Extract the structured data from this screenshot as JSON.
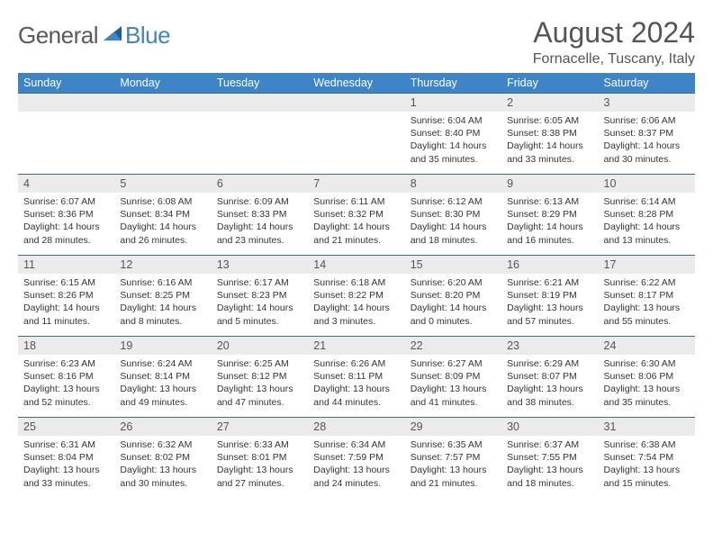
{
  "brand": {
    "part1": "General",
    "part2": "Blue"
  },
  "title": "August 2024",
  "subtitle": "Fornacelle, Tuscany, Italy",
  "colors": {
    "header_bg": "#3d85c6",
    "header_fg": "#ffffff",
    "daynum_bg": "#ebebeb",
    "rule": "#426a8c",
    "text": "#333333",
    "title": "#555555"
  },
  "dayNames": [
    "Sunday",
    "Monday",
    "Tuesday",
    "Wednesday",
    "Thursday",
    "Friday",
    "Saturday"
  ],
  "weeks": [
    [
      {
        "n": "",
        "sr": "",
        "ss": "",
        "dl": ""
      },
      {
        "n": "",
        "sr": "",
        "ss": "",
        "dl": ""
      },
      {
        "n": "",
        "sr": "",
        "ss": "",
        "dl": ""
      },
      {
        "n": "",
        "sr": "",
        "ss": "",
        "dl": ""
      },
      {
        "n": "1",
        "sr": "Sunrise: 6:04 AM",
        "ss": "Sunset: 8:40 PM",
        "dl": "Daylight: 14 hours and 35 minutes."
      },
      {
        "n": "2",
        "sr": "Sunrise: 6:05 AM",
        "ss": "Sunset: 8:38 PM",
        "dl": "Daylight: 14 hours and 33 minutes."
      },
      {
        "n": "3",
        "sr": "Sunrise: 6:06 AM",
        "ss": "Sunset: 8:37 PM",
        "dl": "Daylight: 14 hours and 30 minutes."
      }
    ],
    [
      {
        "n": "4",
        "sr": "Sunrise: 6:07 AM",
        "ss": "Sunset: 8:36 PM",
        "dl": "Daylight: 14 hours and 28 minutes."
      },
      {
        "n": "5",
        "sr": "Sunrise: 6:08 AM",
        "ss": "Sunset: 8:34 PM",
        "dl": "Daylight: 14 hours and 26 minutes."
      },
      {
        "n": "6",
        "sr": "Sunrise: 6:09 AM",
        "ss": "Sunset: 8:33 PM",
        "dl": "Daylight: 14 hours and 23 minutes."
      },
      {
        "n": "7",
        "sr": "Sunrise: 6:11 AM",
        "ss": "Sunset: 8:32 PM",
        "dl": "Daylight: 14 hours and 21 minutes."
      },
      {
        "n": "8",
        "sr": "Sunrise: 6:12 AM",
        "ss": "Sunset: 8:30 PM",
        "dl": "Daylight: 14 hours and 18 minutes."
      },
      {
        "n": "9",
        "sr": "Sunrise: 6:13 AM",
        "ss": "Sunset: 8:29 PM",
        "dl": "Daylight: 14 hours and 16 minutes."
      },
      {
        "n": "10",
        "sr": "Sunrise: 6:14 AM",
        "ss": "Sunset: 8:28 PM",
        "dl": "Daylight: 14 hours and 13 minutes."
      }
    ],
    [
      {
        "n": "11",
        "sr": "Sunrise: 6:15 AM",
        "ss": "Sunset: 8:26 PM",
        "dl": "Daylight: 14 hours and 11 minutes."
      },
      {
        "n": "12",
        "sr": "Sunrise: 6:16 AM",
        "ss": "Sunset: 8:25 PM",
        "dl": "Daylight: 14 hours and 8 minutes."
      },
      {
        "n": "13",
        "sr": "Sunrise: 6:17 AM",
        "ss": "Sunset: 8:23 PM",
        "dl": "Daylight: 14 hours and 5 minutes."
      },
      {
        "n": "14",
        "sr": "Sunrise: 6:18 AM",
        "ss": "Sunset: 8:22 PM",
        "dl": "Daylight: 14 hours and 3 minutes."
      },
      {
        "n": "15",
        "sr": "Sunrise: 6:20 AM",
        "ss": "Sunset: 8:20 PM",
        "dl": "Daylight: 14 hours and 0 minutes."
      },
      {
        "n": "16",
        "sr": "Sunrise: 6:21 AM",
        "ss": "Sunset: 8:19 PM",
        "dl": "Daylight: 13 hours and 57 minutes."
      },
      {
        "n": "17",
        "sr": "Sunrise: 6:22 AM",
        "ss": "Sunset: 8:17 PM",
        "dl": "Daylight: 13 hours and 55 minutes."
      }
    ],
    [
      {
        "n": "18",
        "sr": "Sunrise: 6:23 AM",
        "ss": "Sunset: 8:16 PM",
        "dl": "Daylight: 13 hours and 52 minutes."
      },
      {
        "n": "19",
        "sr": "Sunrise: 6:24 AM",
        "ss": "Sunset: 8:14 PM",
        "dl": "Daylight: 13 hours and 49 minutes."
      },
      {
        "n": "20",
        "sr": "Sunrise: 6:25 AM",
        "ss": "Sunset: 8:12 PM",
        "dl": "Daylight: 13 hours and 47 minutes."
      },
      {
        "n": "21",
        "sr": "Sunrise: 6:26 AM",
        "ss": "Sunset: 8:11 PM",
        "dl": "Daylight: 13 hours and 44 minutes."
      },
      {
        "n": "22",
        "sr": "Sunrise: 6:27 AM",
        "ss": "Sunset: 8:09 PM",
        "dl": "Daylight: 13 hours and 41 minutes."
      },
      {
        "n": "23",
        "sr": "Sunrise: 6:29 AM",
        "ss": "Sunset: 8:07 PM",
        "dl": "Daylight: 13 hours and 38 minutes."
      },
      {
        "n": "24",
        "sr": "Sunrise: 6:30 AM",
        "ss": "Sunset: 8:06 PM",
        "dl": "Daylight: 13 hours and 35 minutes."
      }
    ],
    [
      {
        "n": "25",
        "sr": "Sunrise: 6:31 AM",
        "ss": "Sunset: 8:04 PM",
        "dl": "Daylight: 13 hours and 33 minutes."
      },
      {
        "n": "26",
        "sr": "Sunrise: 6:32 AM",
        "ss": "Sunset: 8:02 PM",
        "dl": "Daylight: 13 hours and 30 minutes."
      },
      {
        "n": "27",
        "sr": "Sunrise: 6:33 AM",
        "ss": "Sunset: 8:01 PM",
        "dl": "Daylight: 13 hours and 27 minutes."
      },
      {
        "n": "28",
        "sr": "Sunrise: 6:34 AM",
        "ss": "Sunset: 7:59 PM",
        "dl": "Daylight: 13 hours and 24 minutes."
      },
      {
        "n": "29",
        "sr": "Sunrise: 6:35 AM",
        "ss": "Sunset: 7:57 PM",
        "dl": "Daylight: 13 hours and 21 minutes."
      },
      {
        "n": "30",
        "sr": "Sunrise: 6:37 AM",
        "ss": "Sunset: 7:55 PM",
        "dl": "Daylight: 13 hours and 18 minutes."
      },
      {
        "n": "31",
        "sr": "Sunrise: 6:38 AM",
        "ss": "Sunset: 7:54 PM",
        "dl": "Daylight: 13 hours and 15 minutes."
      }
    ]
  ]
}
